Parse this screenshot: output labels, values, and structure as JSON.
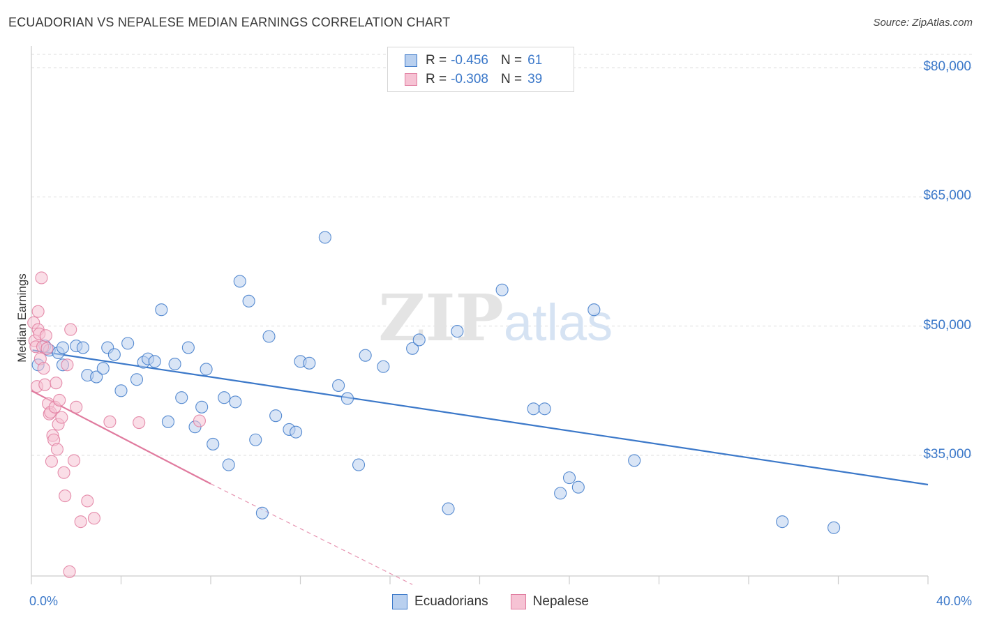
{
  "chart_data": {
    "type": "scatter",
    "title": "ECUADORIAN VS NEPALESE MEDIAN EARNINGS CORRELATION CHART",
    "source": "Source: ZipAtlas.com",
    "ylabel": "Median Earnings",
    "xlabel": "",
    "xlim": [
      0,
      40
    ],
    "ylim": [
      20000,
      83000
    ],
    "x_tick_labels": [
      {
        "value": 0,
        "label": "0.0%"
      },
      {
        "value": 40,
        "label": "40.0%"
      }
    ],
    "y_tick_labels": [
      {
        "value": 35000,
        "label": "$35,000"
      },
      {
        "value": 50000,
        "label": "$50,000"
      },
      {
        "value": 65000,
        "label": "$65,000"
      },
      {
        "value": 80000,
        "label": "$80,000"
      }
    ],
    "watermark": {
      "zip": "ZIP",
      "atlas": "atlas"
    },
    "series": [
      {
        "name": "Ecuadorians",
        "color": "#3b78c9",
        "fill": "#b9d0ef",
        "R": "-0.456",
        "N": "61",
        "trend": {
          "x0": 0.05,
          "y0": 47200,
          "x1": 40,
          "y1": 31600
        },
        "points": [
          [
            0.3,
            45500
          ],
          [
            0.6,
            47700
          ],
          [
            0.8,
            47200
          ],
          [
            1.2,
            46900
          ],
          [
            1.4,
            45500
          ],
          [
            1.4,
            47500
          ],
          [
            2.0,
            47700
          ],
          [
            2.3,
            47500
          ],
          [
            2.5,
            44300
          ],
          [
            2.9,
            44100
          ],
          [
            3.2,
            45100
          ],
          [
            3.4,
            47500
          ],
          [
            3.7,
            46700
          ],
          [
            4.0,
            42500
          ],
          [
            4.3,
            48000
          ],
          [
            4.7,
            43800
          ],
          [
            5.0,
            45800
          ],
          [
            5.2,
            46200
          ],
          [
            5.5,
            45900
          ],
          [
            5.8,
            51900
          ],
          [
            6.1,
            38900
          ],
          [
            6.4,
            45600
          ],
          [
            6.7,
            41700
          ],
          [
            7.0,
            47500
          ],
          [
            7.3,
            38300
          ],
          [
            7.6,
            40600
          ],
          [
            7.8,
            45000
          ],
          [
            8.1,
            36300
          ],
          [
            8.6,
            41700
          ],
          [
            8.8,
            33900
          ],
          [
            9.1,
            41200
          ],
          [
            9.3,
            55200
          ],
          [
            9.7,
            52900
          ],
          [
            10.0,
            36800
          ],
          [
            10.3,
            28300
          ],
          [
            10.6,
            48800
          ],
          [
            10.9,
            39600
          ],
          [
            11.5,
            38000
          ],
          [
            11.8,
            37700
          ],
          [
            12.0,
            45900
          ],
          [
            12.4,
            45700
          ],
          [
            13.1,
            60300
          ],
          [
            13.7,
            43100
          ],
          [
            14.1,
            41600
          ],
          [
            14.6,
            33900
          ],
          [
            14.9,
            46600
          ],
          [
            15.7,
            45300
          ],
          [
            17.0,
            47400
          ],
          [
            17.3,
            48400
          ],
          [
            18.6,
            28800
          ],
          [
            19.0,
            49400
          ],
          [
            21.0,
            54200
          ],
          [
            22.4,
            40400
          ],
          [
            22.9,
            40400
          ],
          [
            23.6,
            30600
          ],
          [
            24.0,
            32400
          ],
          [
            24.4,
            31300
          ],
          [
            25.1,
            51900
          ],
          [
            26.9,
            34400
          ],
          [
            33.5,
            27300
          ],
          [
            35.8,
            26600
          ]
        ]
      },
      {
        "name": "Nepalese",
        "color": "#e07a9e",
        "fill": "#f6c3d4",
        "R": "-0.308",
        "N": "39",
        "trend": {
          "x0": 0,
          "y0": 42500,
          "x1": 8.0,
          "y1": 31700
        },
        "trend_dashed_end": {
          "x": 17.0,
          "y": 20000
        },
        "points": [
          [
            0.1,
            50400
          ],
          [
            0.15,
            48300
          ],
          [
            0.2,
            47600
          ],
          [
            0.25,
            43000
          ],
          [
            0.3,
            49600
          ],
          [
            0.3,
            51700
          ],
          [
            0.35,
            49100
          ],
          [
            0.4,
            46200
          ],
          [
            0.45,
            55600
          ],
          [
            0.5,
            47600
          ],
          [
            0.55,
            45100
          ],
          [
            0.6,
            43200
          ],
          [
            0.65,
            48900
          ],
          [
            0.7,
            47400
          ],
          [
            0.75,
            41000
          ],
          [
            0.8,
            39800
          ],
          [
            0.85,
            40000
          ],
          [
            0.9,
            34300
          ],
          [
            0.95,
            37300
          ],
          [
            1.0,
            36800
          ],
          [
            1.05,
            40600
          ],
          [
            1.1,
            43400
          ],
          [
            1.15,
            35700
          ],
          [
            1.2,
            38600
          ],
          [
            1.25,
            41400
          ],
          [
            1.35,
            39400
          ],
          [
            1.45,
            33000
          ],
          [
            1.5,
            30300
          ],
          [
            1.6,
            45500
          ],
          [
            1.7,
            21500
          ],
          [
            1.75,
            49600
          ],
          [
            1.9,
            34400
          ],
          [
            2.0,
            40600
          ],
          [
            2.2,
            27300
          ],
          [
            2.5,
            29700
          ],
          [
            2.8,
            27700
          ],
          [
            3.5,
            38900
          ],
          [
            4.8,
            38800
          ],
          [
            7.5,
            39000
          ]
        ]
      }
    ]
  }
}
